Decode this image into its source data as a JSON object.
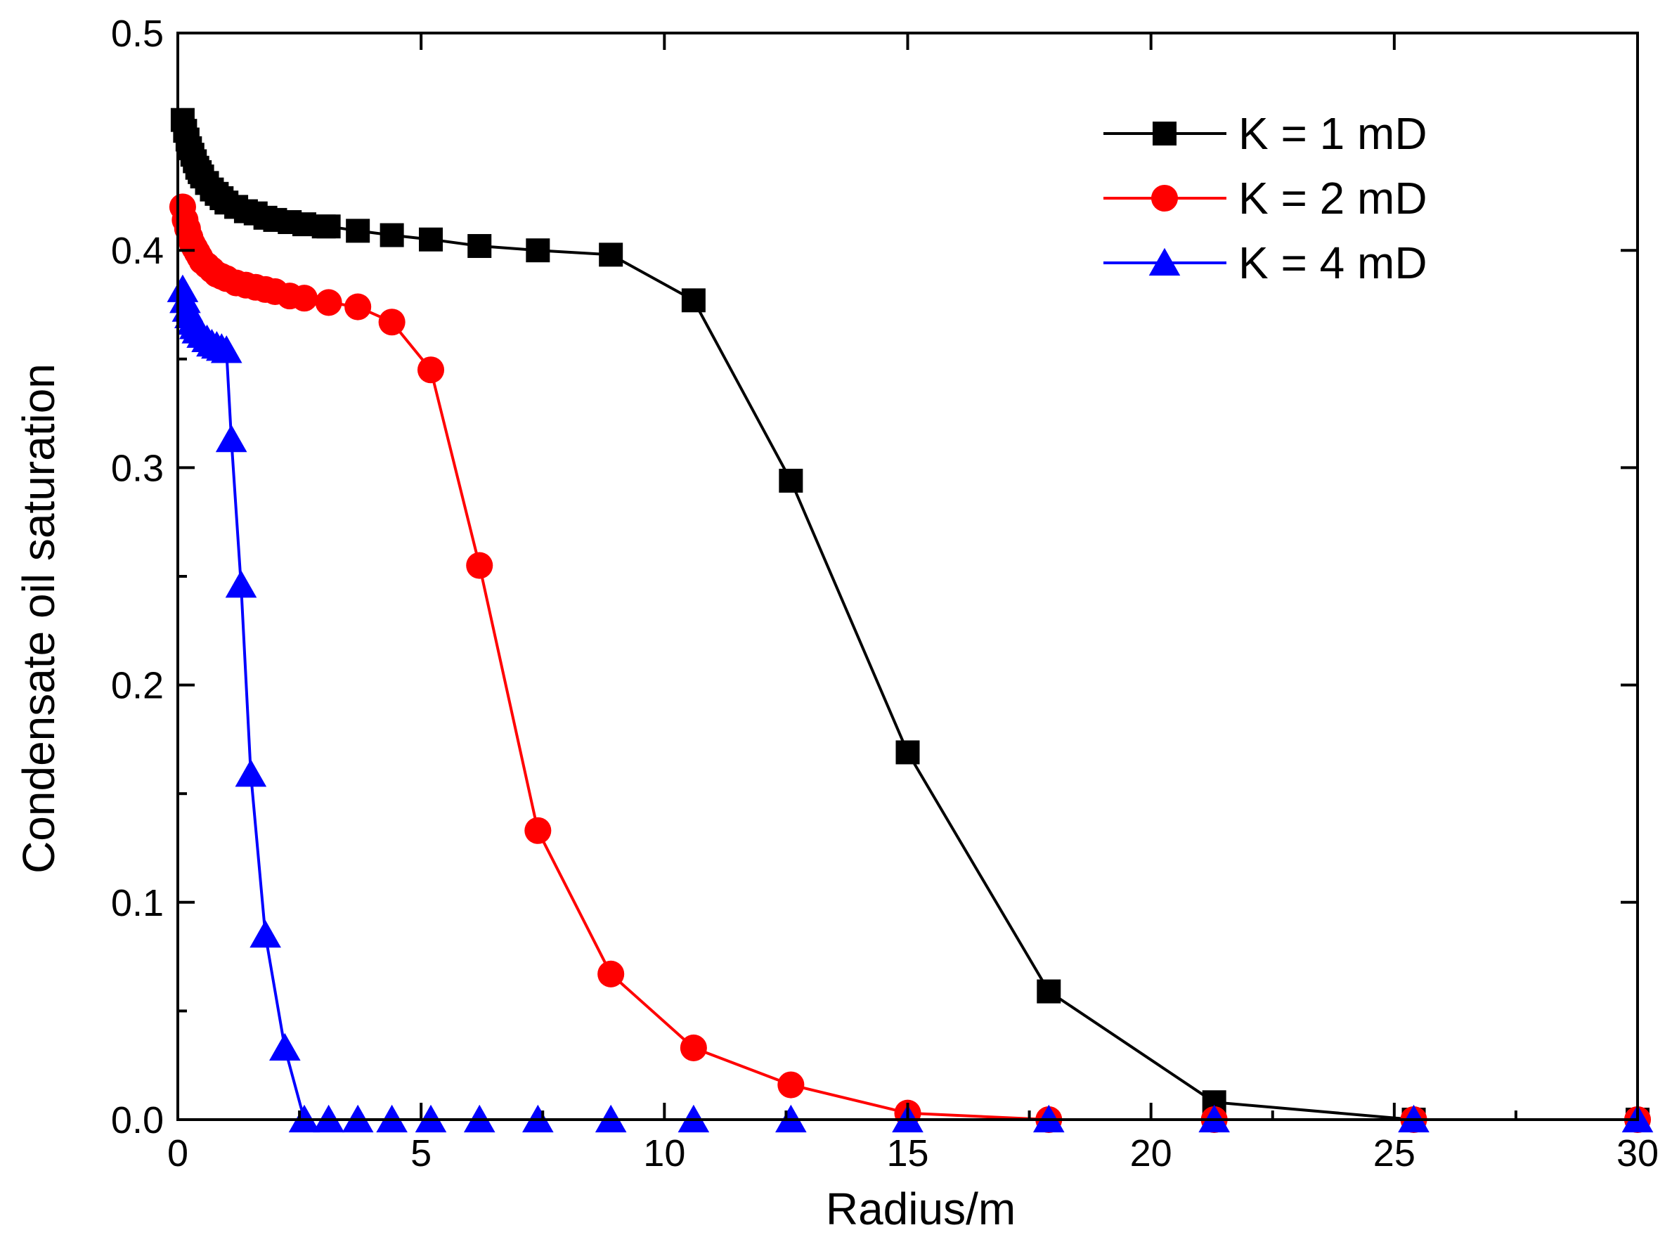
{
  "chart_data": {
    "type": "line",
    "title": "",
    "xlabel": "Radius/m",
    "ylabel": "Condensate oil saturation",
    "xlim": [
      0,
      30
    ],
    "ylim": [
      0,
      0.5
    ],
    "xticks": [
      0,
      5,
      10,
      15,
      20,
      25,
      30
    ],
    "yticks": [
      0.0,
      0.1,
      0.2,
      0.3,
      0.4,
      0.5
    ],
    "xtick_labels": [
      "0",
      "5",
      "10",
      "15",
      "20",
      "25",
      "30"
    ],
    "ytick_labels": [
      "0.0",
      "0.1",
      "0.2",
      "0.3",
      "0.4",
      "0.5"
    ],
    "grid": false,
    "legend_position": "top-right",
    "series": [
      {
        "name": "K = 1 mD",
        "color": "#000000",
        "marker": "square",
        "x": [
          0.1,
          0.15,
          0.2,
          0.25,
          0.3,
          0.35,
          0.4,
          0.45,
          0.5,
          0.6,
          0.7,
          0.8,
          0.9,
          1.0,
          1.2,
          1.4,
          1.6,
          1.8,
          2.0,
          2.3,
          2.6,
          3.0,
          3.1,
          3.7,
          4.4,
          5.2,
          6.2,
          7.4,
          8.9,
          10.6,
          12.6,
          15.0,
          17.9,
          21.3,
          25.4,
          30.0
        ],
        "y": [
          0.46,
          0.455,
          0.451,
          0.447,
          0.444,
          0.441,
          0.438,
          0.436,
          0.434,
          0.431,
          0.428,
          0.426,
          0.424,
          0.422,
          0.42,
          0.418,
          0.417,
          0.415,
          0.414,
          0.413,
          0.412,
          0.411,
          0.411,
          0.409,
          0.407,
          0.405,
          0.402,
          0.4,
          0.398,
          0.377,
          0.294,
          0.169,
          0.059,
          0.008,
          0.0,
          0.0
        ]
      },
      {
        "name": "K = 2 mD",
        "color": "#ff0000",
        "marker": "circle",
        "x": [
          0.1,
          0.15,
          0.2,
          0.25,
          0.3,
          0.35,
          0.4,
          0.45,
          0.5,
          0.6,
          0.7,
          0.8,
          0.9,
          1.0,
          1.2,
          1.4,
          1.6,
          1.8,
          2.0,
          2.3,
          2.6,
          3.1,
          3.7,
          4.4,
          5.2,
          6.2,
          7.4,
          8.9,
          10.6,
          12.6,
          15.0,
          17.9,
          21.3,
          25.4,
          30.0
        ],
        "y": [
          0.42,
          0.414,
          0.41,
          0.406,
          0.403,
          0.401,
          0.399,
          0.397,
          0.395,
          0.393,
          0.391,
          0.389,
          0.388,
          0.387,
          0.385,
          0.384,
          0.383,
          0.382,
          0.381,
          0.379,
          0.378,
          0.376,
          0.374,
          0.367,
          0.345,
          0.255,
          0.133,
          0.067,
          0.033,
          0.016,
          0.003,
          0.0,
          0.0,
          0.0,
          0.0
        ]
      },
      {
        "name": "K = 4 mD",
        "color": "#0000ff",
        "marker": "triangle",
        "x": [
          0.1,
          0.15,
          0.2,
          0.25,
          0.3,
          0.35,
          0.4,
          0.5,
          0.6,
          0.7,
          0.8,
          0.9,
          1.0,
          1.1,
          1.3,
          1.5,
          1.8,
          2.2,
          2.6,
          3.1,
          3.7,
          4.4,
          5.2,
          6.2,
          7.4,
          8.9,
          10.6,
          12.6,
          15.0,
          17.9,
          21.3,
          25.4,
          30.0
        ],
        "y": [
          0.382,
          0.377,
          0.373,
          0.37,
          0.367,
          0.365,
          0.363,
          0.361,
          0.359,
          0.357,
          0.356,
          0.355,
          0.354,
          0.313,
          0.246,
          0.159,
          0.085,
          0.033,
          0.0,
          0.0,
          0.0,
          0.0,
          0.0,
          0.0,
          0.0,
          0.0,
          0.0,
          0.0,
          0.0,
          0.0,
          0.0,
          0.0,
          0.0
        ]
      }
    ]
  }
}
